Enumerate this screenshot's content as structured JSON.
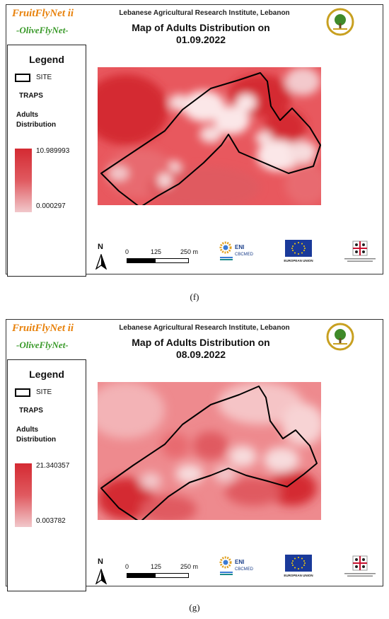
{
  "panels": [
    {
      "brand": "FruitFlyNet ii",
      "brand_sub": "-OliveFlyNet-",
      "institute": "Lebanese Agricultural Research Institute, Lebanon",
      "title_line1": "Map of Adults Distribution on",
      "title_line2": "01.09.2022",
      "legend": {
        "title": "Legend",
        "site": "SITE",
        "traps": "TRAPS",
        "adults_line1": "Adults",
        "adults_line2": "Distribution",
        "max": "10.989993",
        "min": "0.000297"
      },
      "north": "N",
      "scale": {
        "t0": "0",
        "t1": "125",
        "t2": "250 m"
      },
      "logo_eni": "ENI",
      "logo_cbc": "CBCMED",
      "logo_eu": "EUROPEAN UNION",
      "caption": "(f)"
    },
    {
      "brand": "FruitFlyNet ii",
      "brand_sub": "-OliveFlyNet-",
      "institute": "Lebanese Agricultural Research Institute, Lebanon",
      "title_line1": "Map of Adults Distribution on",
      "title_line2": "08.09.2022",
      "legend": {
        "title": "Legend",
        "site": "SITE",
        "traps": "TRAPS",
        "adults_line1": "Adults",
        "adults_line2": "Distribution",
        "max": "21.340357",
        "min": "0.003782"
      },
      "north": "N",
      "scale": {
        "t0": "0",
        "t1": "125",
        "t2": "250 m"
      },
      "logo_eni": "ENI",
      "logo_cbc": "CBCMED",
      "logo_eu": "EUROPEAN UNION",
      "caption": "(g)"
    }
  ],
  "colors": {
    "high": "#d42a32",
    "mid": "#e86a70",
    "low": "#f7dcdd",
    "brand": "#e8820c",
    "brand_sub": "#3a9a2a"
  }
}
